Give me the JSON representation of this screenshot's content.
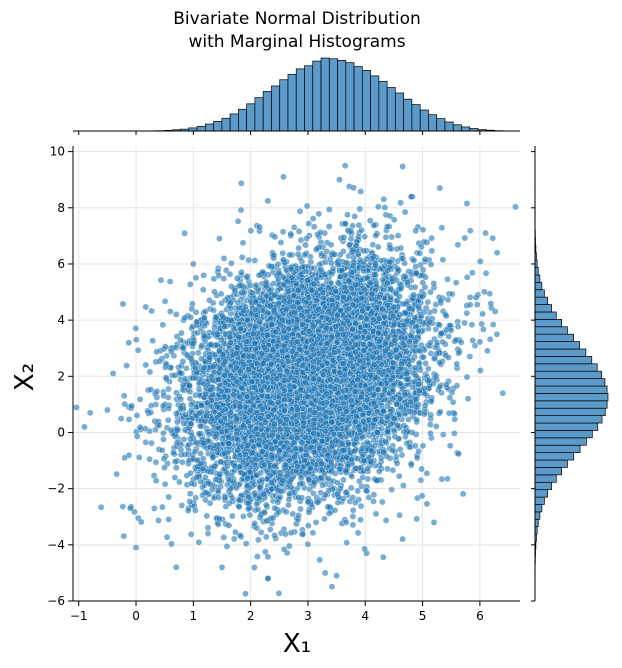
{
  "chart_data": {
    "type": "scatter",
    "title_lines": [
      "Bivariate Normal Distribution",
      "with Marginal Histograms"
    ],
    "xlabel": "X₁",
    "ylabel": "X₂",
    "xlim": [
      -1.1,
      6.7
    ],
    "ylim": [
      -6.0,
      10.2
    ],
    "xticks": [
      -1,
      0,
      1,
      2,
      3,
      4,
      5,
      6
    ],
    "yticks": [
      -6,
      -4,
      -2,
      0,
      2,
      4,
      6,
      8,
      10
    ],
    "grid": true,
    "point_color": "#1f77b4",
    "point_edge_color": "#ffffff",
    "point_alpha": 0.6,
    "distribution": {
      "n_points": 10000,
      "mean": [
        3.0,
        2.0
      ],
      "std": [
        1.0,
        2.0
      ],
      "correlation": 0.25
    },
    "outliers": [
      {
        "x": -0.9,
        "y": 0.2
      },
      {
        "x": -0.8,
        "y": 0.7
      },
      {
        "x": -0.4,
        "y": 2.1
      },
      {
        "x": -0.5,
        "y": 0.8
      },
      {
        "x": -0.2,
        "y": -0.9
      },
      {
        "x": -0.1,
        "y": -2.7
      },
      {
        "x": 0.0,
        "y": -4.1
      },
      {
        "x": 0.7,
        "y": -4.8
      },
      {
        "x": 1.0,
        "y": 6.0
      },
      {
        "x": 3.65,
        "y": 9.5
      },
      {
        "x": 3.55,
        "y": 9.0
      },
      {
        "x": 2.3,
        "y": 8.25
      },
      {
        "x": 5.3,
        "y": 8.7
      },
      {
        "x": 6.4,
        "y": 1.4
      },
      {
        "x": 6.3,
        "y": 6.4
      },
      {
        "x": 5.2,
        "y": -3.2
      },
      {
        "x": 2.3,
        "y": -5.2
      },
      {
        "x": 3.3,
        "y": -5.0
      },
      {
        "x": 3.5,
        "y": -5.1
      },
      {
        "x": 4.8,
        "y": 8.4
      },
      {
        "x": 6.1,
        "y": 7.1
      },
      {
        "x": 1.5,
        "y": -4.8
      }
    ],
    "top_histogram": {
      "bin_edges": [
        0.2,
        6.4
      ],
      "bin_count": 43,
      "counts": [
        1,
        2,
        4,
        8,
        12,
        20,
        30,
        45,
        62,
        82,
        110,
        140,
        175,
        215,
        255,
        290,
        330,
        365,
        400,
        420,
        450,
        470,
        465,
        455,
        440,
        415,
        390,
        355,
        320,
        280,
        245,
        205,
        170,
        135,
        105,
        80,
        58,
        40,
        26,
        16,
        9,
        5,
        2
      ],
      "color": "#5b9ac9",
      "edge_color": "#000000"
    },
    "right_histogram": {
      "bin_edges": [
        -5.2,
        9.3
      ],
      "bin_count": 55,
      "counts": [
        1,
        1,
        2,
        3,
        5,
        8,
        12,
        18,
        27,
        38,
        52,
        70,
        92,
        118,
        148,
        180,
        215,
        250,
        285,
        318,
        348,
        372,
        390,
        400,
        405,
        400,
        388,
        370,
        345,
        315,
        282,
        248,
        214,
        180,
        148,
        118,
        92,
        70,
        52,
        38,
        27,
        18,
        12,
        8,
        5,
        3,
        2,
        1,
        1,
        1,
        1,
        0,
        1,
        0,
        1
      ],
      "color": "#5b9ac9",
      "edge_color": "#000000"
    }
  }
}
